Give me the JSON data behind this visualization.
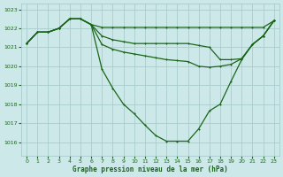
{
  "bg_color": "#cce8e8",
  "grid_color": "#aacccc",
  "line_color": "#1a6618",
  "ylim": [
    1015.3,
    1023.3
  ],
  "xlim": [
    0,
    23
  ],
  "yticks": [
    1016,
    1017,
    1018,
    1019,
    1020,
    1021,
    1022,
    1023
  ],
  "xticks": [
    0,
    1,
    2,
    3,
    4,
    5,
    6,
    7,
    8,
    9,
    10,
    11,
    12,
    13,
    14,
    15,
    16,
    17,
    18,
    19,
    20,
    21,
    22,
    23
  ],
  "xlabel": "Graphe pression niveau de la mer (hPa)",
  "series": [
    [
      1021.2,
      1021.8,
      1021.8,
      1022.0,
      1022.5,
      1022.5,
      1022.2,
      1022.05,
      1022.05,
      1022.05,
      1022.05,
      1022.05,
      1022.05,
      1022.05,
      1022.05,
      1022.05,
      1022.05,
      1022.05,
      1022.05,
      1022.05,
      1022.05,
      1022.05,
      1022.05,
      1022.4
    ],
    [
      1021.2,
      1021.8,
      1021.8,
      1022.0,
      1022.5,
      1022.5,
      1022.2,
      1021.6,
      1021.4,
      1021.3,
      1021.2,
      1021.2,
      1021.2,
      1021.2,
      1021.2,
      1021.2,
      1021.1,
      1021.0,
      1020.35,
      1020.35,
      1020.4,
      1021.15,
      1021.6,
      1022.4
    ],
    [
      1021.2,
      1021.8,
      1021.8,
      1022.0,
      1022.5,
      1022.5,
      1022.2,
      1021.15,
      1020.9,
      1020.75,
      1020.65,
      1020.55,
      1020.45,
      1020.35,
      1020.3,
      1020.25,
      1020.0,
      1019.95,
      1020.0,
      1020.1,
      1020.4,
      1021.15,
      1021.6,
      1022.4
    ],
    [
      1021.2,
      1021.8,
      1021.8,
      1022.0,
      1022.5,
      1022.5,
      1022.2,
      1019.85,
      1018.85,
      1018.0,
      1017.5,
      1016.9,
      1016.35,
      1016.05,
      1016.05,
      1016.05,
      1016.7,
      1017.65,
      1018.0,
      1019.2,
      1020.35,
      1021.15,
      1021.6,
      1022.4
    ]
  ]
}
